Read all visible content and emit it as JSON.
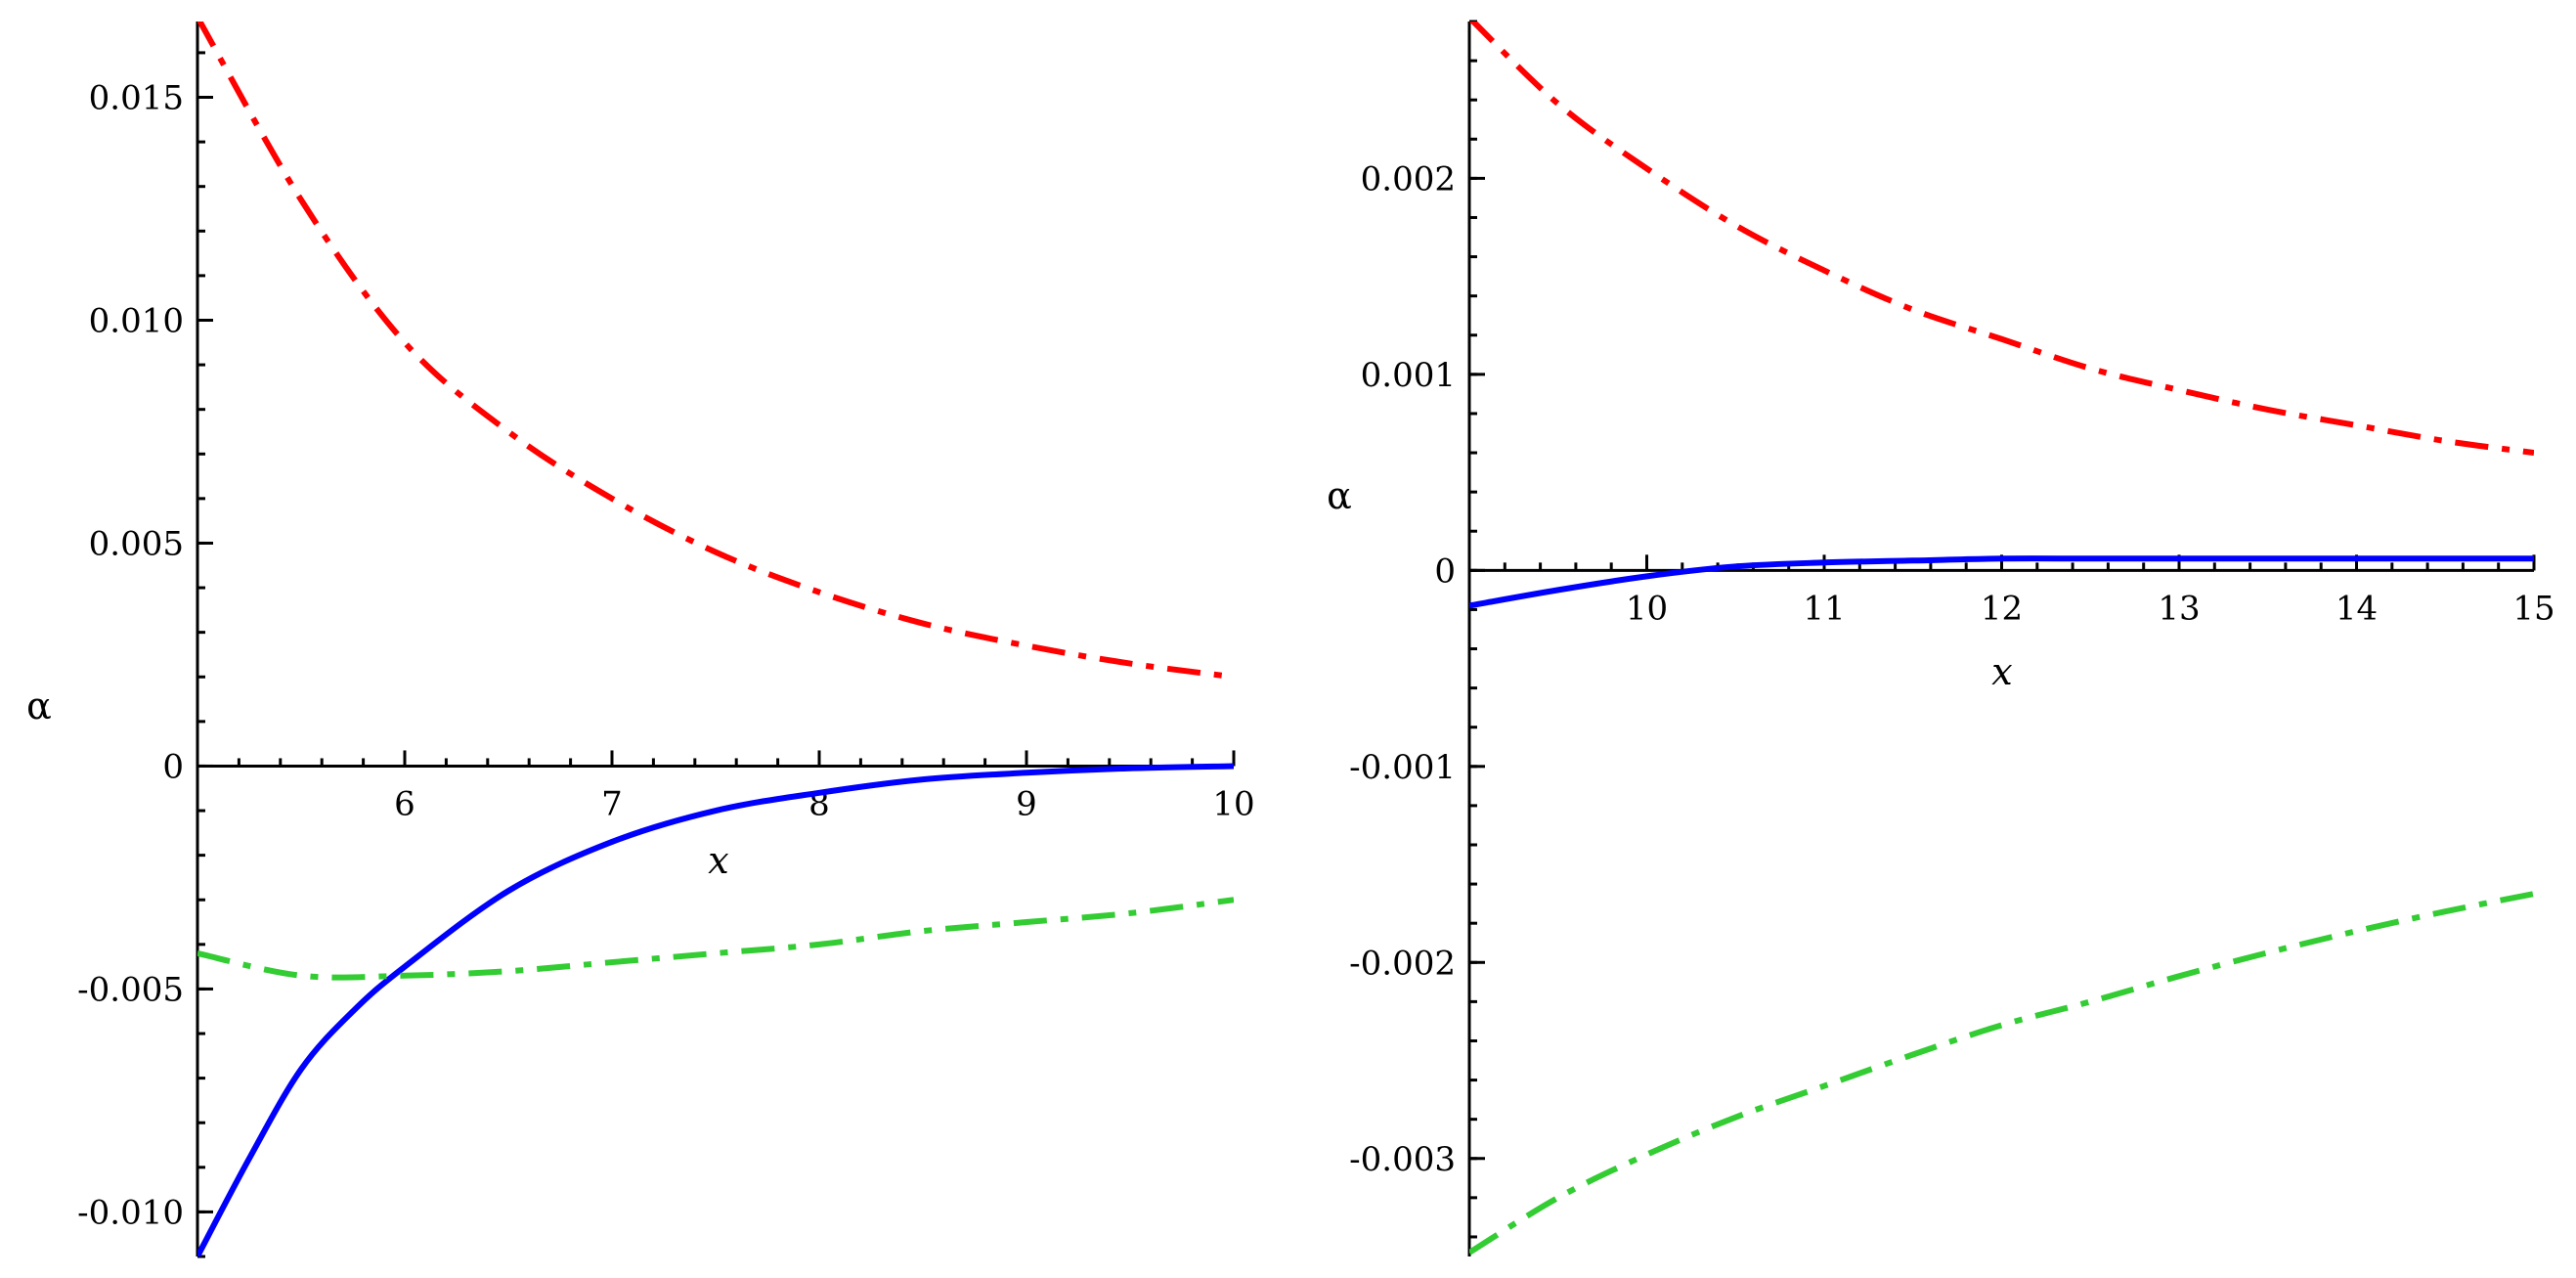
{
  "chart_data": [
    {
      "type": "line",
      "xlabel": "x",
      "ylabel": "α",
      "xlim": [
        5,
        10
      ],
      "ylim": [
        -0.011,
        0.0167
      ],
      "x_ticks": [
        {
          "value": 6,
          "label": "6"
        },
        {
          "value": 7,
          "label": "7"
        },
        {
          "value": 8,
          "label": "8"
        },
        {
          "value": 9,
          "label": "9"
        },
        {
          "value": 10,
          "label": "10"
        }
      ],
      "y_ticks": [
        {
          "value": 0.015,
          "label": "0.015"
        },
        {
          "value": 0.01,
          "label": "0.010"
        },
        {
          "value": 0.005,
          "label": "0.005"
        },
        {
          "value": 0,
          "label": "0"
        },
        {
          "value": -0.005,
          "label": "-0.005"
        },
        {
          "value": -0.01,
          "label": "-0.010"
        }
      ],
      "grid": false,
      "series": [
        {
          "color": "#ff0000",
          "style": "dashdot",
          "x": [
            5.0,
            5.5,
            6.0,
            6.5,
            7.0,
            7.5,
            8.0,
            8.5,
            9.0,
            9.5,
            10.0
          ],
          "y": [
            0.0168,
            0.0127,
            0.0095,
            0.0075,
            0.006,
            0.0048,
            0.0039,
            0.0032,
            0.0027,
            0.0023,
            0.002
          ]
        },
        {
          "color": "#0000ff",
          "style": "solid",
          "x": [
            5.0,
            5.25,
            5.5,
            5.75,
            6.0,
            6.5,
            7.0,
            7.5,
            8.0,
            8.5,
            9.0,
            9.5,
            10.0
          ],
          "y": [
            -0.011,
            -0.0088,
            -0.0068,
            -0.0055,
            -0.0045,
            -0.0028,
            -0.0017,
            -0.001,
            -0.0006,
            -0.0003,
            -0.00015,
            -5e-05,
            0.0
          ]
        },
        {
          "color": "#33cc33",
          "style": "dashdot",
          "x": [
            5.0,
            5.5,
            6.0,
            6.5,
            7.0,
            7.5,
            8.0,
            8.5,
            9.0,
            9.5,
            10.0
          ],
          "y": [
            -0.0042,
            -0.0047,
            -0.0047,
            -0.0046,
            -0.0044,
            -0.0042,
            -0.004,
            -0.0037,
            -0.0035,
            -0.0033,
            -0.003
          ]
        }
      ]
    },
    {
      "type": "line",
      "xlabel": "x",
      "ylabel": "α",
      "xlim": [
        9,
        15
      ],
      "ylim": [
        -0.0035,
        0.0028
      ],
      "x_ticks": [
        {
          "value": 10,
          "label": "10"
        },
        {
          "value": 11,
          "label": "11"
        },
        {
          "value": 12,
          "label": "12"
        },
        {
          "value": 13,
          "label": "13"
        },
        {
          "value": 14,
          "label": "14"
        },
        {
          "value": 15,
          "label": "15"
        }
      ],
      "y_ticks": [
        {
          "value": 0.002,
          "label": "0.002"
        },
        {
          "value": 0.001,
          "label": "0.001"
        },
        {
          "value": 0,
          "label": "0"
        },
        {
          "value": -0.001,
          "label": "-0.001"
        },
        {
          "value": -0.002,
          "label": "-0.002"
        },
        {
          "value": -0.003,
          "label": "-0.003"
        }
      ],
      "grid": false,
      "series": [
        {
          "color": "#ff0000",
          "style": "dashdot",
          "x": [
            9.0,
            9.5,
            10.0,
            10.5,
            11.0,
            11.5,
            12.0,
            12.5,
            13.0,
            13.5,
            14.0,
            14.5,
            15.0
          ],
          "y": [
            0.00282,
            0.00238,
            0.00205,
            0.00176,
            0.00153,
            0.00133,
            0.00118,
            0.00103,
            0.00092,
            0.00082,
            0.00074,
            0.00066,
            0.0006
          ]
        },
        {
          "color": "#0000ff",
          "style": "solid",
          "x": [
            9.0,
            9.5,
            10.0,
            10.5,
            11.0,
            11.5,
            12.0,
            12.5,
            13.0,
            13.5,
            14.0,
            14.5,
            15.0
          ],
          "y": [
            -0.00018,
            -0.0001,
            -3e-05,
            2e-05,
            4e-05,
            5e-05,
            6e-05,
            6e-05,
            6e-05,
            6e-05,
            6e-05,
            6e-05,
            6e-05
          ]
        },
        {
          "color": "#33cc33",
          "style": "dashdot",
          "x": [
            9.0,
            9.5,
            10.0,
            10.5,
            11.0,
            11.5,
            12.0,
            12.5,
            13.0,
            13.5,
            14.0,
            14.5,
            15.0
          ],
          "y": [
            -0.00348,
            -0.0032,
            -0.00298,
            -0.00279,
            -0.00263,
            -0.00247,
            -0.00232,
            -0.0022,
            -0.00207,
            -0.00195,
            -0.00184,
            -0.00174,
            -0.00165
          ]
        }
      ]
    }
  ]
}
